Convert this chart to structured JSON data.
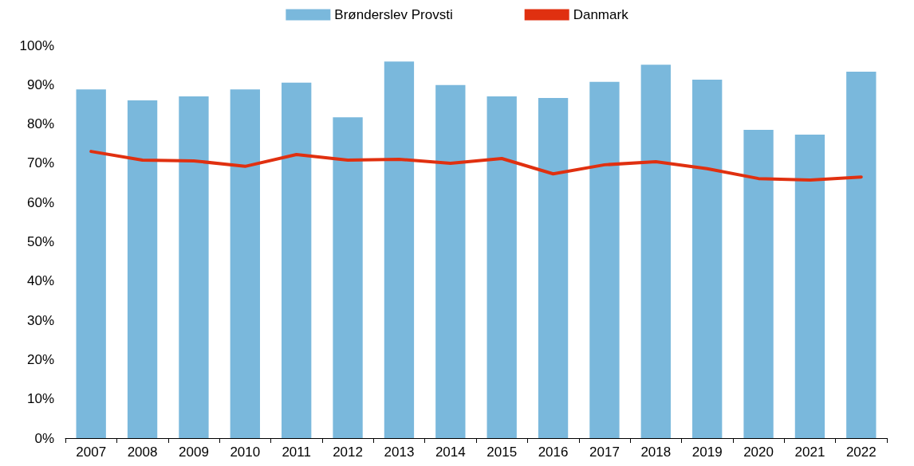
{
  "chart_data": {
    "type": "bar",
    "categories": [
      "2007",
      "2008",
      "2009",
      "2010",
      "2011",
      "2012",
      "2013",
      "2014",
      "2015",
      "2016",
      "2017",
      "2018",
      "2019",
      "2020",
      "2021",
      "2022"
    ],
    "series": [
      {
        "name": "Brønderslev Provsti",
        "color": "#7ab8dc",
        "values": [
          88.8,
          86,
          87,
          88.8,
          90.5,
          81.7,
          95.9,
          89.9,
          87,
          86.6,
          90.7,
          95.1,
          91.3,
          78.5,
          77.3,
          93.3
        ]
      },
      {
        "name": "Danmark",
        "type": "line",
        "color": "#e03010",
        "values": [
          73,
          70.8,
          70.6,
          69.2,
          72.2,
          70.8,
          71,
          70,
          71.2,
          67.3,
          69.6,
          70.4,
          68.6,
          66.1,
          65.7,
          66.5
        ]
      }
    ],
    "ylim": [
      0,
      100
    ],
    "yticks": [
      {
        "value": 0,
        "label": "0%"
      },
      {
        "value": 10,
        "label": "10%"
      },
      {
        "value": 20,
        "label": "20%"
      },
      {
        "value": 30,
        "label": "30%"
      },
      {
        "value": 40,
        "label": "40%"
      },
      {
        "value": 50,
        "label": "50%"
      },
      {
        "value": 60,
        "label": "60%"
      },
      {
        "value": 70,
        "label": "70%"
      },
      {
        "value": 80,
        "label": "80%"
      },
      {
        "value": 90,
        "label": "90%"
      },
      {
        "value": 100,
        "label": "100%"
      }
    ],
    "grid": false,
    "legend": "top",
    "marker": "none",
    "line_style": "solid"
  }
}
